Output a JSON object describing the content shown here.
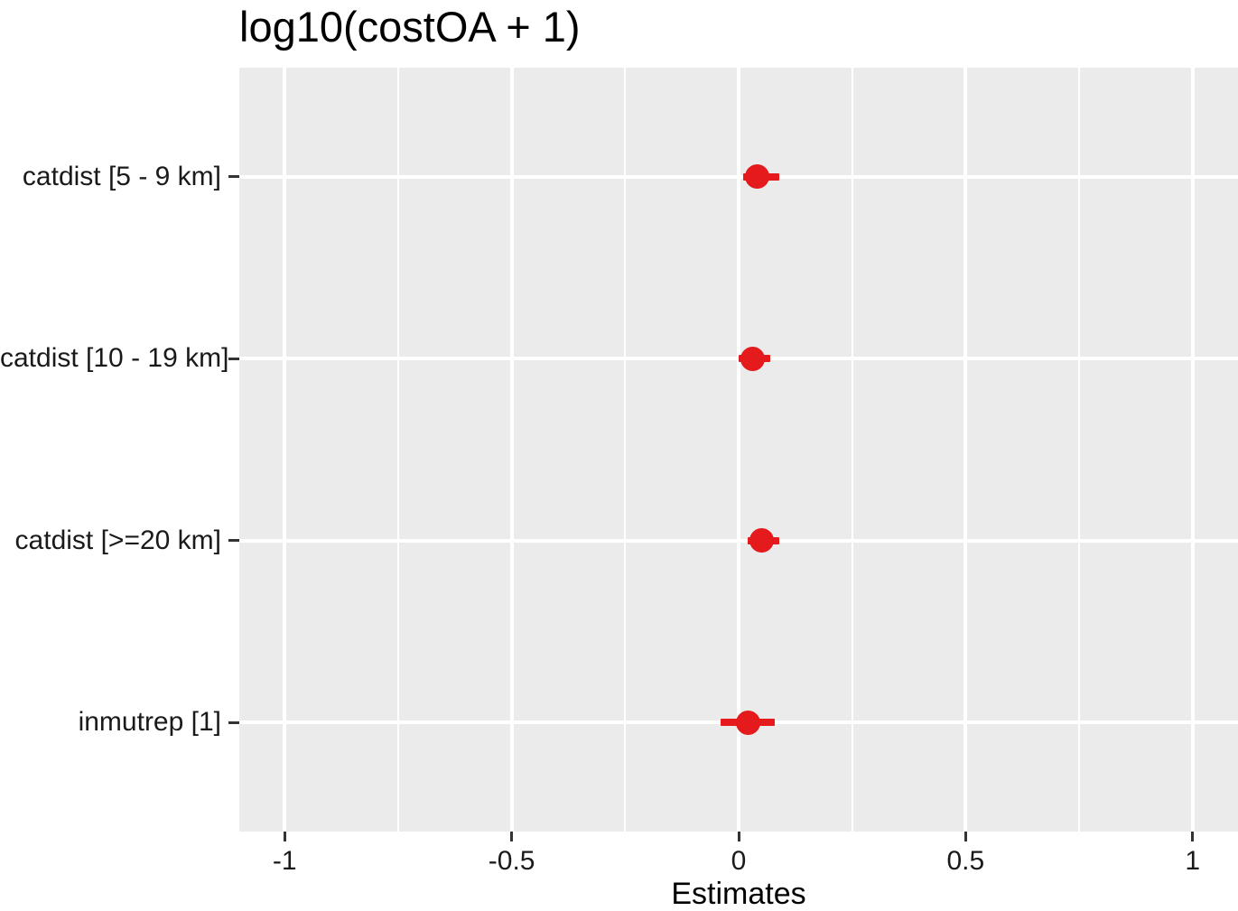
{
  "header": {
    "title": "log10(costOA + 1)"
  },
  "chart_data": {
    "type": "scatter",
    "variant": "forest-dot-whisker",
    "title": "log10(costOA + 1)",
    "xlabel": "Estimates",
    "ylabel": "",
    "legend": "none",
    "grid": true,
    "categories": [
      "catdist [5 - 9 km]",
      "catdist [10 - 19 km]",
      "catdist [>=20 km]",
      "inmutrep [1]"
    ],
    "points": [
      {
        "term": "catdist [5 - 9 km]",
        "estimate": 0.04,
        "ci_low": 0.01,
        "ci_high": 0.09
      },
      {
        "term": "catdist [10 - 19 km]",
        "estimate": 0.03,
        "ci_low": 0.0,
        "ci_high": 0.07
      },
      {
        "term": "catdist [>=20 km]",
        "estimate": 0.05,
        "ci_low": 0.02,
        "ci_high": 0.09
      },
      {
        "term": "inmutrep [1]",
        "estimate": 0.02,
        "ci_low": -0.04,
        "ci_high": 0.08
      }
    ],
    "xlim": [
      -1.1,
      1.1
    ],
    "x_major_ticks": [
      -1,
      -0.5,
      0,
      0.5,
      1
    ],
    "x_major_tick_labels": [
      "-1",
      "-0.5",
      "0",
      "0.5",
      "1"
    ],
    "x_minor_ticks": [
      -0.75,
      -0.25,
      0.25,
      0.75
    ],
    "colors": {
      "point": "#e41a1c",
      "panel_bg": "#ebebeb",
      "grid": "#ffffff",
      "tick_mark": "#333333",
      "axis_text": "#1a1a1a",
      "title_text": "#000000"
    }
  }
}
